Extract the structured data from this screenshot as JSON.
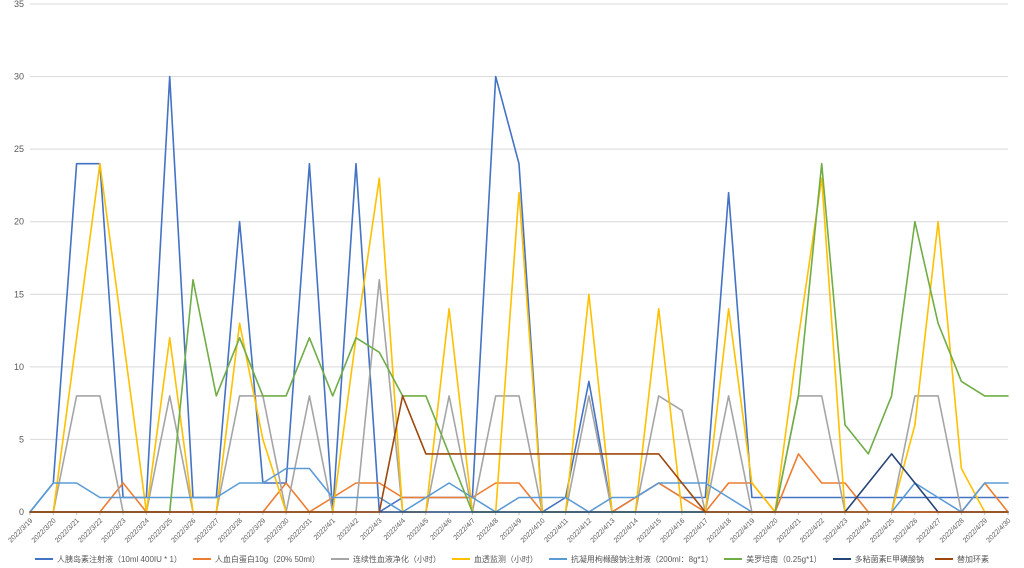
{
  "chart_data": {
    "type": "line",
    "title": "",
    "xlabel": "",
    "ylabel": "",
    "grid": "horizontal",
    "legend_position": "bottom",
    "y_axis": {
      "min": 0,
      "max": 35,
      "step": 5
    },
    "x": [
      "2022/3/19",
      "2022/3/20",
      "2022/3/21",
      "2022/3/22",
      "2022/3/23",
      "2022/3/24",
      "2022/3/25",
      "2022/3/26",
      "2022/3/27",
      "2022/3/28",
      "2022/3/29",
      "2022/3/30",
      "2022/3/31",
      "2022/4/1",
      "2022/4/2",
      "2022/4/3",
      "2022/4/4",
      "2022/4/5",
      "2022/4/6",
      "2022/4/7",
      "2022/4/8",
      "2022/4/9",
      "2022/4/10",
      "2022/4/11",
      "2022/4/12",
      "2022/4/13",
      "2022/4/14",
      "2022/4/15",
      "2022/4/16",
      "2022/4/17",
      "2022/4/18",
      "2022/4/19",
      "2022/4/20",
      "2022/4/21",
      "2022/4/22",
      "2022/4/23",
      "2022/4/24",
      "2022/4/25",
      "2022/4/26",
      "2022/4/27",
      "2022/4/28",
      "2022/4/29",
      "2022/4/30"
    ],
    "series": [
      {
        "name": "人胰岛素注射液（10ml 400IU * 1）",
        "color": "#4472C4",
        "values": [
          0,
          2,
          24,
          24,
          1,
          1,
          30,
          1,
          1,
          20,
          2,
          2,
          24,
          0,
          24,
          0,
          1,
          1,
          1,
          1,
          30,
          24,
          0,
          1,
          9,
          0,
          1,
          2,
          1,
          1,
          22,
          1,
          1,
          1,
          1,
          1,
          1,
          1,
          1,
          1,
          1,
          1,
          1
        ]
      },
      {
        "name": "人血白蛋白10g（20%  50ml）",
        "color": "#ED7D31",
        "values": [
          0,
          0,
          0,
          0,
          2,
          0,
          0,
          0,
          0,
          0,
          0,
          2,
          0,
          1,
          2,
          2,
          1,
          1,
          1,
          1,
          2,
          2,
          0,
          0,
          0,
          0,
          1,
          2,
          1,
          0,
          2,
          2,
          0,
          4,
          2,
          2,
          0,
          0,
          0,
          0,
          0,
          2,
          0
        ]
      },
      {
        "name": "连续性血液净化（小时）",
        "color": "#A5A5A5",
        "values": [
          0,
          0,
          8,
          8,
          0,
          0,
          8,
          0,
          0,
          8,
          8,
          0,
          8,
          0,
          0,
          16,
          0,
          0,
          8,
          0,
          8,
          8,
          0,
          0,
          8,
          0,
          0,
          8,
          7,
          0,
          8,
          0,
          0,
          8,
          8,
          0,
          0,
          0,
          8,
          8,
          0,
          0,
          0
        ]
      },
      {
        "name": "血透监测（小时）",
        "color": "#FFC000",
        "values": [
          0,
          0,
          12,
          24,
          12,
          0,
          12,
          0,
          0,
          13,
          5,
          0,
          0,
          0,
          12,
          23,
          0,
          0,
          14,
          0,
          0,
          22,
          0,
          0,
          15,
          0,
          0,
          14,
          0,
          0,
          14,
          2,
          0,
          12,
          23,
          0,
          0,
          0,
          6,
          20,
          3,
          0,
          0
        ]
      },
      {
        "name": "抗凝用枸橼酸钠注射液（200ml：8g*1）",
        "color": "#5B9BD5",
        "values": [
          0,
          2,
          2,
          1,
          1,
          1,
          1,
          1,
          1,
          2,
          2,
          3,
          3,
          1,
          1,
          1,
          0,
          1,
          2,
          1,
          0,
          1,
          1,
          1,
          0,
          1,
          1,
          2,
          2,
          2,
          1,
          0,
          0,
          0,
          0,
          0,
          0,
          0,
          2,
          1,
          0,
          2,
          2
        ]
      },
      {
        "name": "美罗培南（0.25g*1）",
        "color": "#70AD47",
        "values": [
          0,
          0,
          0,
          0,
          0,
          0,
          0,
          16,
          8,
          12,
          8,
          8,
          12,
          8,
          12,
          11,
          8,
          8,
          4,
          0,
          0,
          0,
          0,
          0,
          0,
          0,
          0,
          0,
          0,
          0,
          0,
          0,
          0,
          8,
          24,
          6,
          4,
          8,
          20,
          13,
          9,
          8,
          8
        ]
      },
      {
        "name": "多粘菌素E甲磺酸钠",
        "color": "#264478",
        "values": [
          0,
          0,
          0,
          0,
          0,
          0,
          0,
          0,
          0,
          0,
          0,
          0,
          0,
          0,
          0,
          0,
          0,
          0,
          0,
          0,
          0,
          0,
          0,
          0,
          0,
          0,
          0,
          0,
          0,
          0,
          0,
          0,
          0,
          0,
          0,
          0,
          2,
          4,
          2,
          0,
          0,
          0,
          0
        ]
      },
      {
        "name": "替加环素",
        "color": "#9E480E",
        "values": [
          0,
          0,
          0,
          0,
          0,
          0,
          0,
          0,
          0,
          0,
          0,
          0,
          0,
          0,
          0,
          0,
          8,
          4,
          4,
          4,
          4,
          4,
          4,
          4,
          4,
          4,
          4,
          4,
          2,
          0,
          0,
          0,
          0,
          0,
          0,
          0,
          0,
          0,
          0,
          0,
          0,
          0,
          0
        ]
      }
    ]
  }
}
